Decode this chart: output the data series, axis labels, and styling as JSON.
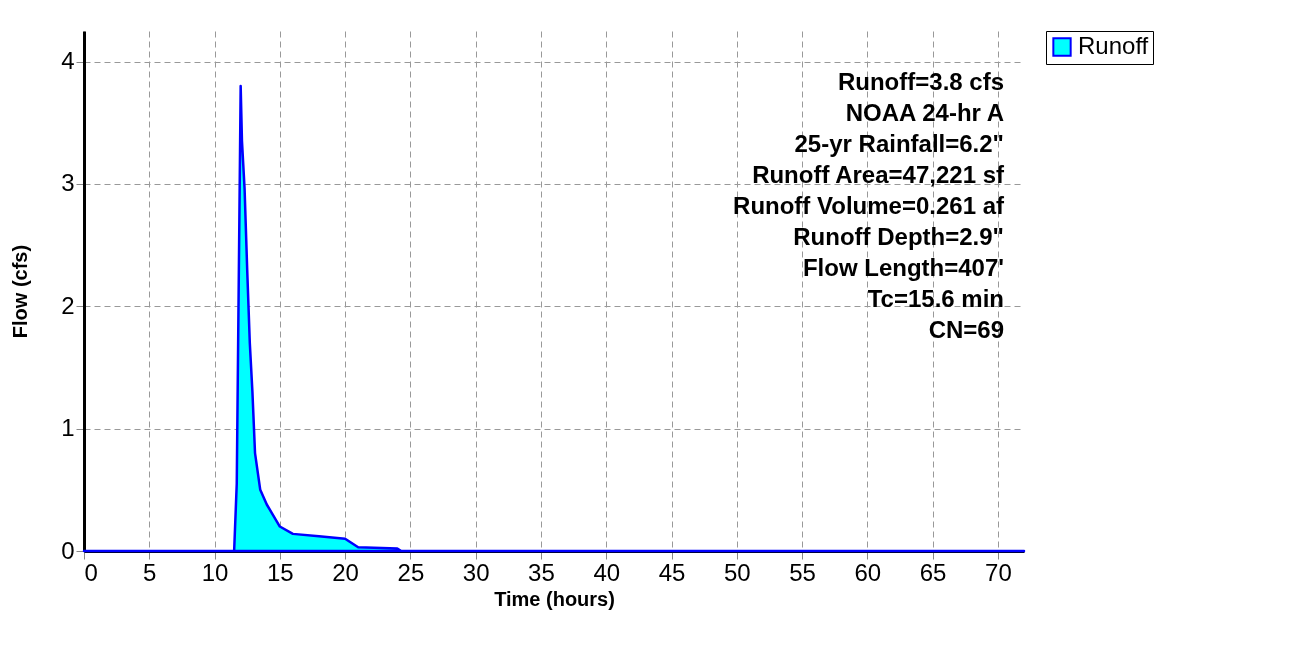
{
  "chart_data": {
    "type": "area",
    "xlabel": "Time  (hours)",
    "ylabel": "Flow  (cfs)",
    "x": [
      0,
      11.5,
      11.7,
      12.0,
      12.1,
      12.3,
      12.5,
      12.7,
      12.9,
      13.1,
      13.5,
      14,
      15,
      16,
      18,
      20,
      21,
      24,
      24.3,
      72
    ],
    "series": [
      {
        "name": "Runoff",
        "color": "#00ffff",
        "values": [
          0,
          0,
          0.55,
          3.8,
          3.35,
          2.96,
          2.3,
          1.7,
          1.3,
          0.8,
          0.5,
          0.38,
          0.2,
          0.14,
          0.12,
          0.1,
          0.03,
          0.02,
          0,
          0
        ]
      }
    ],
    "xlim": [
      0,
      72
    ],
    "xticks": [
      0,
      5,
      10,
      15,
      20,
      25,
      30,
      35,
      40,
      45,
      50,
      55,
      60,
      65,
      70
    ],
    "ylim": [
      0,
      4.25
    ],
    "yticks": [
      0,
      1,
      2,
      3,
      4
    ],
    "grid": true,
    "legend": "top right",
    "annotations": [
      "Runoff=3.8 cfs",
      "NOAA 24-hr A",
      "25-yr Rainfall=6.2\"",
      "Runoff Area=47,221 sf",
      "Runoff Volume=0.261 af",
      "Runoff Depth=2.9\"",
      "Flow Length=407'",
      "Tc=15.6 min",
      "CN=69"
    ]
  }
}
